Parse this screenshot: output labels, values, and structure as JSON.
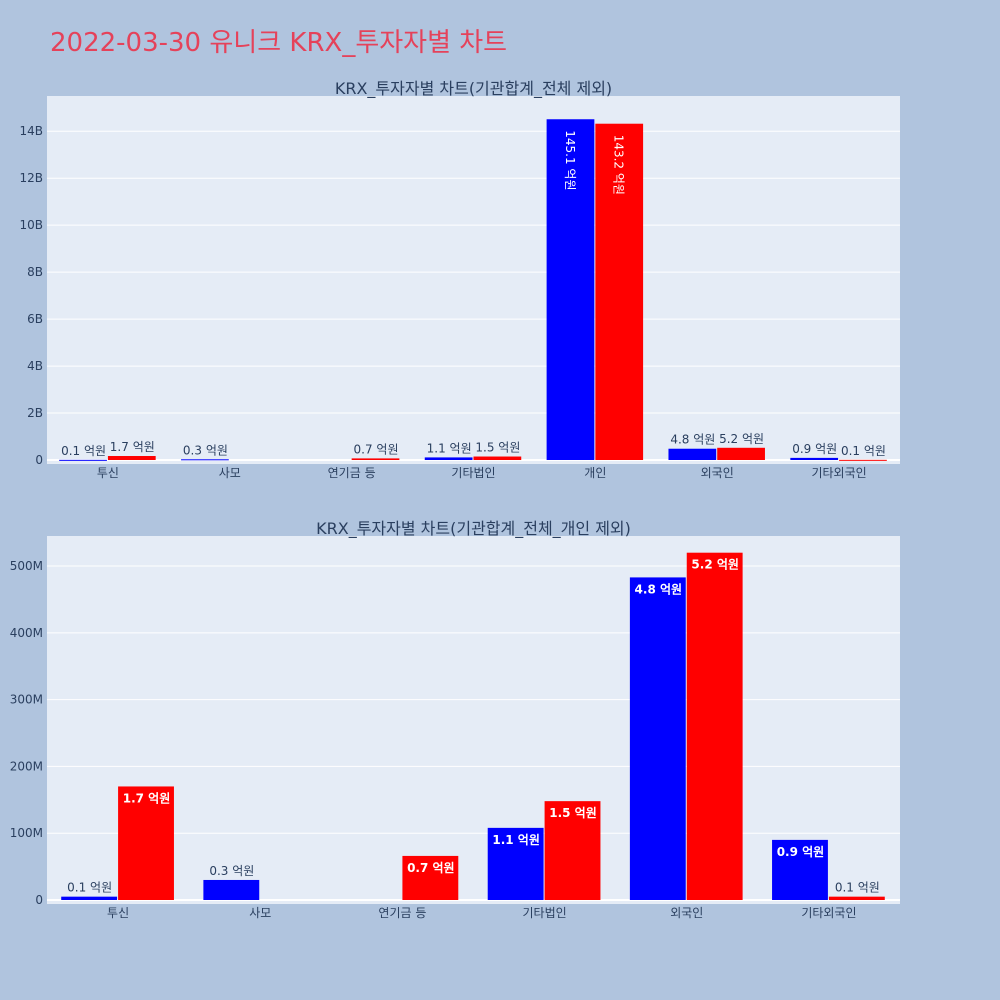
{
  "page": {
    "title": "2022-03-30 유니크 KRX_투자자별 차트"
  },
  "colors": {
    "buy": "#0000ff",
    "sell": "#ff0000",
    "plot_bg": "#e5ecf6",
    "page_bg": "#b0c4de",
    "title": "#e5425a",
    "text": "#2a3f5f"
  },
  "chart_data": [
    {
      "type": "bar",
      "title": "KRX_투자자별 차트(기관합계_전체 제외)",
      "categories": [
        "투신",
        "사모",
        "연기금 등",
        "기타법인",
        "개인",
        "외국인",
        "기타외국인"
      ],
      "series": [
        {
          "values": [
            7000000,
            30000000,
            0,
            110000000,
            14510000000,
            480000000,
            90000000
          ],
          "labels": [
            "0.1 억원",
            "0.3 억원",
            "",
            "1.1 억원",
            "145.1 억원",
            "4.8 억원",
            "0.9 억원"
          ]
        },
        {
          "values": [
            170000000,
            0,
            68000000,
            148000000,
            14320000000,
            520000000,
            7000000
          ],
          "labels": [
            "1.7 억원",
            "",
            "0.7 억원",
            "1.5 억원",
            "143.2 억원",
            "5.2 억원",
            "0.1 억원"
          ]
        }
      ],
      "ylim": [
        0,
        15500000000
      ],
      "yticks": [
        0,
        2000000000,
        4000000000,
        6000000000,
        8000000000,
        10000000000,
        12000000000,
        14000000000
      ],
      "ytick_labels": [
        "0",
        "2B",
        "4B",
        "6B",
        "8B",
        "10B",
        "12B",
        "14B"
      ],
      "grid": true
    },
    {
      "type": "bar",
      "title": "KRX_투자자별 차트(기관합계_전체_개인 제외)",
      "categories": [
        "투신",
        "사모",
        "연기금 등",
        "기타법인",
        "외국인",
        "기타외국인"
      ],
      "series": [
        {
          "values": [
            5000000,
            30000000,
            0,
            108000000,
            483000000,
            90000000
          ],
          "labels": [
            "0.1 억원",
            "0.3 억원",
            "",
            "1.1 억원",
            "4.8 억원",
            "0.9 억원"
          ]
        },
        {
          "values": [
            170000000,
            0,
            66000000,
            148000000,
            520000000,
            5000000
          ],
          "labels": [
            "1.7 억원",
            "",
            "0.7 억원",
            "1.5 억원",
            "5.2 억원",
            "0.1 억원"
          ]
        }
      ],
      "ylim": [
        0,
        545000000
      ],
      "yticks": [
        0,
        100000000,
        200000000,
        300000000,
        400000000,
        500000000
      ],
      "ytick_labels": [
        "0",
        "100M",
        "200M",
        "300M",
        "400M",
        "500M"
      ],
      "grid": true
    }
  ]
}
